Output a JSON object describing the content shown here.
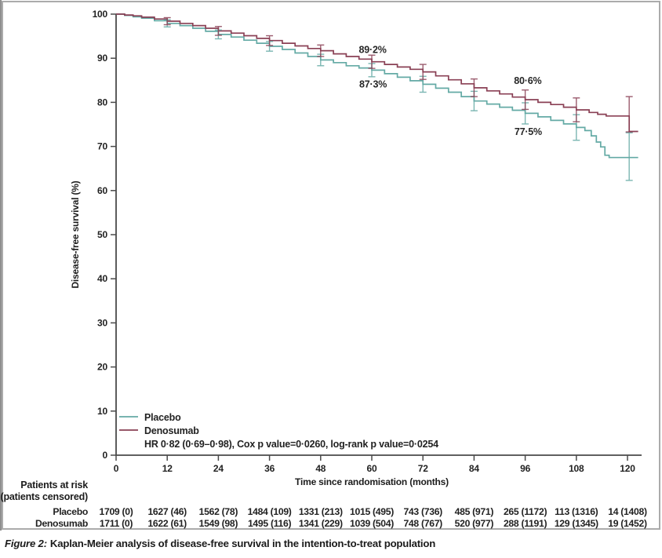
{
  "page": {
    "background": "#ffffff",
    "figure_border_color": "#ababab"
  },
  "caption": {
    "figure_label": "Figure 2:",
    "text": "Kaplan-Meier analysis of disease-free survival in the intention-to-treat population"
  },
  "chart_data": {
    "type": "line",
    "subtype": "kaplan-meier-step",
    "title": "",
    "xlabel": "Time since randomisation (months)",
    "ylabel": "Disease-free survival (%)",
    "xlim": [
      0,
      120
    ],
    "ylim": [
      0,
      100
    ],
    "x_ticks": [
      0,
      12,
      24,
      36,
      48,
      60,
      72,
      84,
      96,
      108,
      120
    ],
    "y_ticks": [
      0,
      10,
      20,
      30,
      40,
      50,
      60,
      70,
      80,
      90,
      100
    ],
    "grid": false,
    "legend_position": "inside-bottom-left",
    "stats_line": "HR 0·82 (0·69–0·98), Cox p value=0·0260, log-rank p value=0·0254",
    "series": [
      {
        "name": "Placebo",
        "color": "#64aaa5",
        "step_points": [
          [
            0,
            100
          ],
          [
            2,
            99.7
          ],
          [
            4,
            99.4
          ],
          [
            6,
            99.1
          ],
          [
            9,
            98.5
          ],
          [
            12,
            97.9
          ],
          [
            15,
            97.4
          ],
          [
            18,
            96.8
          ],
          [
            21,
            96.1
          ],
          [
            24,
            95.4
          ],
          [
            27,
            94.8
          ],
          [
            30,
            94.1
          ],
          [
            33,
            93.4
          ],
          [
            36,
            92.7
          ],
          [
            39,
            92.0
          ],
          [
            42,
            91.2
          ],
          [
            45,
            90.4
          ],
          [
            48,
            89.6
          ],
          [
            51,
            89.0
          ],
          [
            54,
            88.3
          ],
          [
            57,
            87.8
          ],
          [
            60,
            87.3
          ],
          [
            63,
            86.5
          ],
          [
            66,
            85.7
          ],
          [
            69,
            84.9
          ],
          [
            72,
            84.1
          ],
          [
            75,
            83.2
          ],
          [
            78,
            82.3
          ],
          [
            81,
            81.3
          ],
          [
            84,
            80.3
          ],
          [
            87,
            79.6
          ],
          [
            90,
            78.9
          ],
          [
            93,
            78.2
          ],
          [
            96,
            77.5
          ],
          [
            99,
            76.7
          ],
          [
            102,
            75.9
          ],
          [
            105,
            75.1
          ],
          [
            108,
            74.3
          ],
          [
            110,
            73.6
          ],
          [
            111.5,
            72.4
          ],
          [
            112.7,
            71.0
          ],
          [
            113.7,
            69.9
          ],
          [
            114.7,
            68.0
          ],
          [
            115.7,
            67.5
          ],
          [
            122.5,
            67.5
          ]
        ],
        "error_bars": [
          [
            12,
            97.9,
            0.8
          ],
          [
            24,
            95.4,
            1.0
          ],
          [
            36,
            92.7,
            1.1
          ],
          [
            48,
            89.6,
            1.3
          ],
          [
            60,
            87.3,
            1.5
          ],
          [
            72,
            84.1,
            1.8
          ],
          [
            84,
            80.3,
            2.2
          ],
          [
            96,
            77.5,
            2.4
          ],
          [
            108,
            74.3,
            2.9
          ],
          [
            120.4,
            67.7,
            5.4
          ]
        ]
      },
      {
        "name": "Denosumab",
        "color": "#8a4055",
        "step_points": [
          [
            0,
            100
          ],
          [
            2,
            99.8
          ],
          [
            4,
            99.6
          ],
          [
            6,
            99.3
          ],
          [
            9,
            98.9
          ],
          [
            12,
            98.4
          ],
          [
            15,
            97.9
          ],
          [
            18,
            97.4
          ],
          [
            21,
            96.8
          ],
          [
            24,
            96.2
          ],
          [
            27,
            95.7
          ],
          [
            30,
            95.1
          ],
          [
            33,
            94.5
          ],
          [
            36,
            94.0
          ],
          [
            39,
            93.4
          ],
          [
            42,
            92.8
          ],
          [
            45,
            92.2
          ],
          [
            48,
            91.7
          ],
          [
            51,
            91.0
          ],
          [
            54,
            90.4
          ],
          [
            57,
            89.8
          ],
          [
            60,
            89.2
          ],
          [
            63,
            88.6
          ],
          [
            66,
            88.0
          ],
          [
            69,
            87.5
          ],
          [
            72,
            86.9
          ],
          [
            75,
            86.0
          ],
          [
            78,
            85.1
          ],
          [
            81,
            84.2
          ],
          [
            84,
            83.3
          ],
          [
            87,
            82.6
          ],
          [
            90,
            81.9
          ],
          [
            93,
            81.2
          ],
          [
            96,
            80.6
          ],
          [
            99,
            80.0
          ],
          [
            102,
            79.5
          ],
          [
            105,
            78.9
          ],
          [
            108,
            78.3
          ],
          [
            111,
            77.7
          ],
          [
            113,
            77.3
          ],
          [
            115,
            76.9
          ],
          [
            120.4,
            73.4
          ],
          [
            122.5,
            73.4
          ]
        ],
        "error_bars": [
          [
            12,
            98.4,
            0.8
          ],
          [
            24,
            96.2,
            1.0
          ],
          [
            36,
            94.0,
            1.1
          ],
          [
            48,
            91.7,
            1.3
          ],
          [
            60,
            89.2,
            1.5
          ],
          [
            72,
            86.9,
            1.7
          ],
          [
            84,
            83.3,
            2.0
          ],
          [
            96,
            80.6,
            2.2
          ],
          [
            108,
            78.3,
            2.7
          ],
          [
            120.4,
            77.3,
            4.0
          ]
        ]
      }
    ],
    "annotations": [
      {
        "text": "89·2%",
        "month": 60.2,
        "value": 91.2,
        "series": "Denosumab"
      },
      {
        "text": "87·3%",
        "month": 60.3,
        "value": 83.4,
        "series": "Placebo"
      },
      {
        "text": "80·6%",
        "month": 96.6,
        "value": 84.2,
        "series": "Denosumab"
      },
      {
        "text": "77·5%",
        "month": 96.7,
        "value": 72.6,
        "series": "Placebo"
      }
    ]
  },
  "risk_table": {
    "header_line1": "Patients at risk",
    "header_line2": "(patients censored)",
    "time_points": [
      0,
      12,
      24,
      36,
      48,
      60,
      72,
      84,
      96,
      108,
      120
    ],
    "rows": [
      {
        "label": "Placebo",
        "values": [
          "1709 (0)",
          "1627 (46)",
          "1562 (78)",
          "1484 (109)",
          "1331 (213)",
          "1015 (495)",
          "743 (736)",
          "485 (971)",
          "265 (1172)",
          "113 (1316)",
          "14 (1408)"
        ]
      },
      {
        "label": "Denosumab",
        "values": [
          "1711 (0)",
          "1622 (61)",
          "1549 (98)",
          "1495 (116)",
          "1341 (229)",
          "1039 (504)",
          "748 (767)",
          "520 (977)",
          "288 (1191)",
          "129 (1345)",
          "19 (1452)"
        ]
      }
    ]
  }
}
